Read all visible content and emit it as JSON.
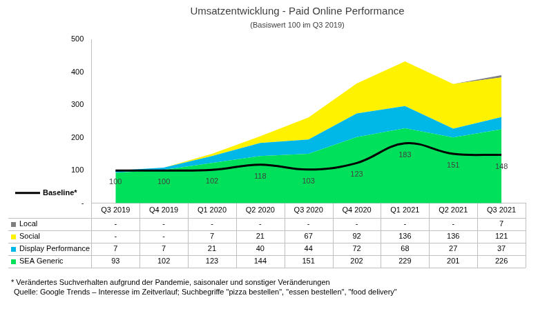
{
  "chart_data": {
    "type": "area",
    "title": "Umsatzentwicklung - Paid Online Performance",
    "subtitle": "(Basiswert 100 im Q3 2019)",
    "categories": [
      "Q3 2019",
      "Q4 2019",
      "Q1 2020",
      "Q2 2020",
      "Q3 2020",
      "Q4 2020",
      "Q1 2021",
      "Q2 2021",
      "Q3 2021"
    ],
    "stacked": true,
    "grid": false,
    "ylim": [
      0,
      500
    ],
    "yticks": [
      {
        "value": 0,
        "label": "-"
      },
      100,
      200,
      300,
      400,
      500
    ],
    "series": [
      {
        "name": "SEA Generic",
        "color": "#00E05A",
        "values": [
          93,
          102,
          123,
          144,
          151,
          202,
          229,
          201,
          226
        ]
      },
      {
        "name": "Display Performance",
        "color": "#00B8E8",
        "values": [
          7,
          7,
          21,
          40,
          44,
          72,
          68,
          27,
          37
        ]
      },
      {
        "name": "Social",
        "color": "#FFF200",
        "values": [
          0,
          0,
          7,
          21,
          67,
          92,
          136,
          136,
          121
        ],
        "value_labels": [
          "-",
          "-",
          "7",
          "21",
          "67",
          "92",
          "136",
          "136",
          "121"
        ]
      },
      {
        "name": "Local",
        "color": "#7F7F7F",
        "values": [
          0,
          0,
          0,
          0,
          0,
          0,
          0,
          0,
          7
        ],
        "value_labels": [
          "-",
          "-",
          "-",
          "-",
          "-",
          "-",
          "-",
          "-",
          "7"
        ]
      },
      {
        "name": "Baseline*",
        "type": "line",
        "color": "#000000",
        "data_labels": true,
        "values": [
          100,
          100,
          102,
          118,
          103,
          123,
          183,
          151,
          148
        ]
      }
    ],
    "annotations": [
      "* Verändertes Suchverhalten aufgrund der Pandemie, saisonaler und sonstiger Veränderungen",
      "Quelle: Google Trends – Interesse im Zeitverlauf; Suchbegriffe \"pizza bestellen\", \"essen bestellen\", \"food delivery\""
    ]
  }
}
